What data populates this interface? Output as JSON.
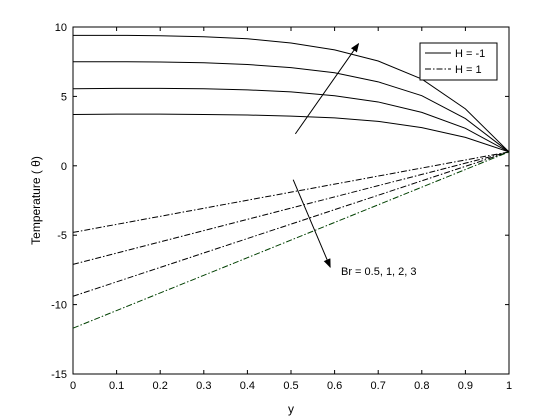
{
  "chart_data": {
    "type": "line",
    "title": "",
    "xlabel": "y",
    "ylabel": "Temperature ( θ)",
    "xlim": [
      0,
      1
    ],
    "ylim": [
      -15,
      10
    ],
    "xticks": [
      0,
      0.1,
      0.2,
      0.3,
      0.4,
      0.5,
      0.6,
      0.7,
      0.8,
      0.9,
      1
    ],
    "yticks": [
      -15,
      -10,
      -5,
      0,
      5,
      10
    ],
    "xtick_labels": [
      "0",
      "0.1",
      "0.2",
      "0.3",
      "0.4",
      "0.5",
      "0.6",
      "0.7",
      "0.8",
      "0.9",
      "1"
    ],
    "ytick_labels": [
      "-15",
      "-10",
      "-5",
      "0",
      "5",
      "10"
    ],
    "grid": false,
    "legend": {
      "placement": "top-right",
      "entries": [
        {
          "label": "H = -1",
          "style": "solid"
        },
        {
          "label": "H = 1",
          "style": "dashdot"
        }
      ]
    },
    "annotation": {
      "text": "Br = 0.5, 1, 2, 3",
      "arrows": [
        {
          "from": [
            0.51,
            2.3
          ],
          "to": [
            0.655,
            8.8
          ]
        },
        {
          "from": [
            0.505,
            -1.0
          ],
          "to": [
            0.59,
            -7.3
          ]
        }
      ]
    },
    "x": [
      0,
      0.1,
      0.2,
      0.3,
      0.4,
      0.5,
      0.6,
      0.7,
      0.8,
      0.9,
      1
    ],
    "series": [
      {
        "group": "H = -1",
        "Br": "0.5",
        "style": "solid",
        "color": "#000000",
        "values": [
          3.7,
          3.72,
          3.72,
          3.7,
          3.66,
          3.58,
          3.45,
          3.2,
          2.75,
          2.05,
          1.0
        ]
      },
      {
        "group": "H = -1",
        "Br": "1",
        "style": "solid",
        "color": "#000000",
        "values": [
          5.55,
          5.58,
          5.58,
          5.55,
          5.47,
          5.33,
          5.05,
          4.6,
          3.85,
          2.7,
          1.0
        ]
      },
      {
        "group": "H = -1",
        "Br": "2",
        "style": "solid",
        "color": "#000000",
        "values": [
          7.5,
          7.5,
          7.48,
          7.42,
          7.3,
          7.07,
          6.7,
          6.05,
          5.05,
          3.4,
          1.0
        ]
      },
      {
        "group": "H = -1",
        "Br": "3",
        "style": "solid",
        "color": "#000000",
        "values": [
          9.4,
          9.4,
          9.37,
          9.3,
          9.15,
          8.85,
          8.35,
          7.55,
          6.25,
          4.1,
          1.0
        ]
      },
      {
        "group": "H = 1",
        "Br": "0.5",
        "style": "dashdot",
        "color": "#000000",
        "values": [
          -4.8,
          -4.22,
          -3.64,
          -3.06,
          -2.48,
          -1.9,
          -1.32,
          -0.74,
          -0.16,
          0.42,
          1.0
        ]
      },
      {
        "group": "H = 1",
        "Br": "1",
        "style": "dashdot",
        "color": "#000000",
        "values": [
          -7.1,
          -6.29,
          -5.48,
          -4.67,
          -3.86,
          -3.05,
          -2.24,
          -1.43,
          -0.62,
          0.19,
          1.0
        ]
      },
      {
        "group": "H = 1",
        "Br": "2",
        "style": "dashdot",
        "color": "#000000",
        "values": [
          -9.4,
          -8.36,
          -7.32,
          -6.28,
          -5.24,
          -4.2,
          -3.16,
          -2.12,
          -1.08,
          -0.04,
          1.0
        ]
      },
      {
        "group": "H = 1",
        "Br": "3",
        "style": "dashdot",
        "color": "#004000",
        "values": [
          -11.7,
          -10.43,
          -9.16,
          -7.89,
          -6.62,
          -5.35,
          -4.08,
          -2.81,
          -1.54,
          -0.27,
          1.0
        ]
      }
    ]
  }
}
